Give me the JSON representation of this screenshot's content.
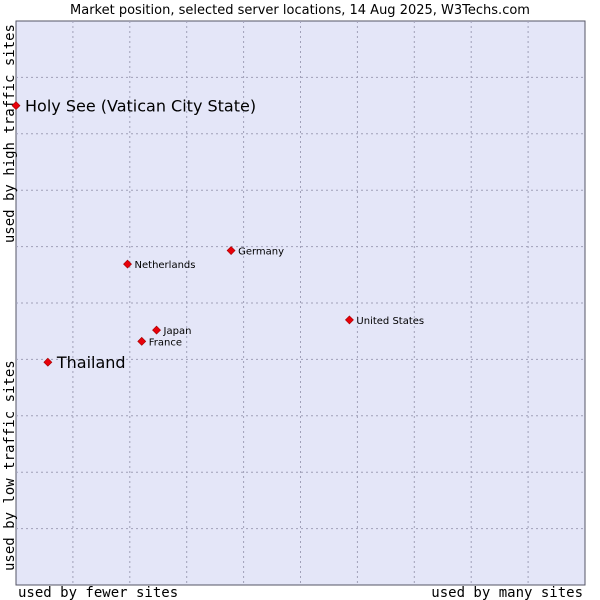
{
  "chart_data": {
    "type": "scatter",
    "title": "Market position, selected server locations, 14 Aug 2025, W3Techs.com",
    "xlabel_left": "used by fewer sites",
    "xlabel_right": "used by many sites",
    "ylabel_top": "used by high traffic sites",
    "ylabel_bottom": "used by low traffic sites",
    "xlim": [
      0,
      100
    ],
    "ylim": [
      0,
      100
    ],
    "grid": true,
    "colors": {
      "plot_background": "#e4e6f8",
      "marker": "#e8000a",
      "grid": "#a0a0b8"
    },
    "points": [
      {
        "name": "Holy See (Vatican City State)",
        "x": 0.0,
        "y": 85.0,
        "emphasis": true
      },
      {
        "name": "Germany",
        "x": 37.8,
        "y": 59.3,
        "emphasis": false
      },
      {
        "name": "Netherlands",
        "x": 19.6,
        "y": 56.9,
        "emphasis": false
      },
      {
        "name": "United States",
        "x": 58.6,
        "y": 47.0,
        "emphasis": false
      },
      {
        "name": "Japan",
        "x": 24.7,
        "y": 45.2,
        "emphasis": false
      },
      {
        "name": "France",
        "x": 22.1,
        "y": 43.2,
        "emphasis": false
      },
      {
        "name": "Thailand",
        "x": 5.6,
        "y": 39.5,
        "emphasis": true
      }
    ]
  }
}
